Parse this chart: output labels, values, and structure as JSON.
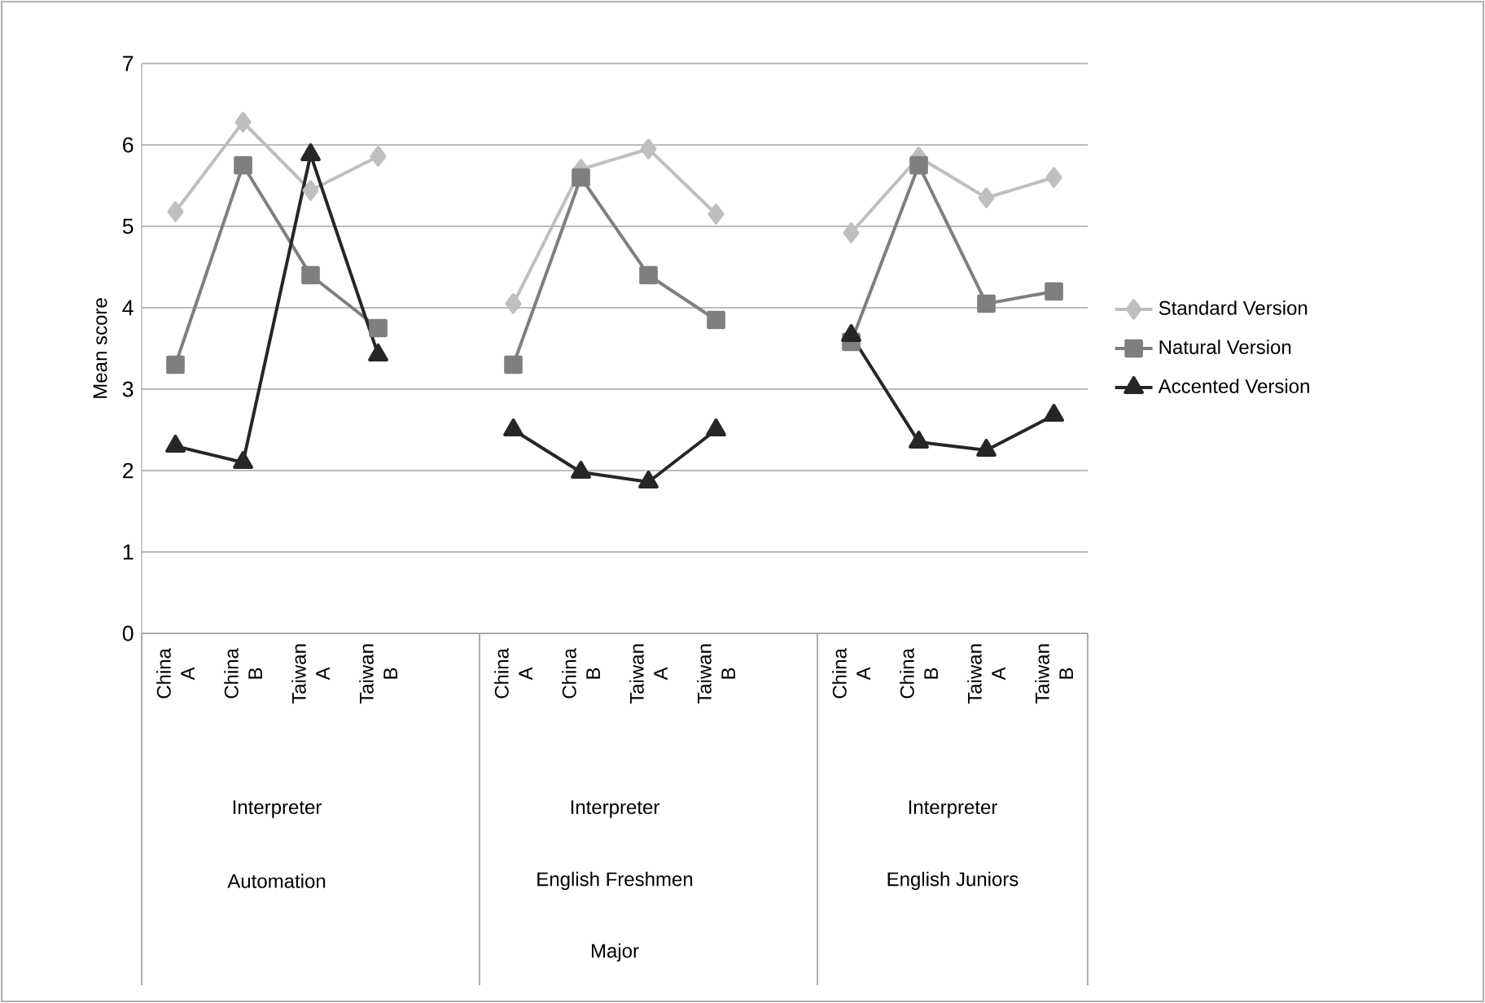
{
  "chart_data": {
    "type": "line",
    "ylabel": "Mean score",
    "categories": [
      "China A",
      "China B",
      "Taiwan A",
      "Taiwan B",
      null,
      "China A",
      "China B",
      "Taiwan A",
      "Taiwan B",
      null,
      "China A",
      "China B",
      "Taiwan A",
      "Taiwan B"
    ],
    "series": [
      {
        "name": "Standard Version",
        "color": "#bfbfbf",
        "marker": "diamond",
        "values": [
          5.18,
          6.28,
          5.44,
          5.86,
          null,
          4.05,
          5.7,
          5.95,
          5.15,
          null,
          4.92,
          5.85,
          5.35,
          5.6
        ]
      },
      {
        "name": "Natural Version",
        "color": "#7f7f7f",
        "marker": "square",
        "values": [
          3.3,
          5.75,
          4.4,
          3.75,
          null,
          3.3,
          5.6,
          4.4,
          3.85,
          null,
          3.58,
          5.75,
          4.05,
          4.2
        ]
      },
      {
        "name": "Accented Version",
        "color": "#262626",
        "marker": "triangle",
        "values": [
          2.3,
          2.1,
          5.88,
          3.42,
          null,
          2.5,
          1.98,
          1.86,
          2.5,
          null,
          3.66,
          2.35,
          2.25,
          2.68
        ]
      }
    ],
    "annotations": [
      "Interpreter",
      "Automation",
      "Interpreter",
      "English Freshmen",
      "Interpreter",
      "English Juniors",
      "Major"
    ],
    "ylim": [
      0,
      7
    ],
    "yticks": [
      0,
      1,
      2,
      3,
      4,
      5,
      6,
      7
    ],
    "grid": "y",
    "legend": "right"
  }
}
